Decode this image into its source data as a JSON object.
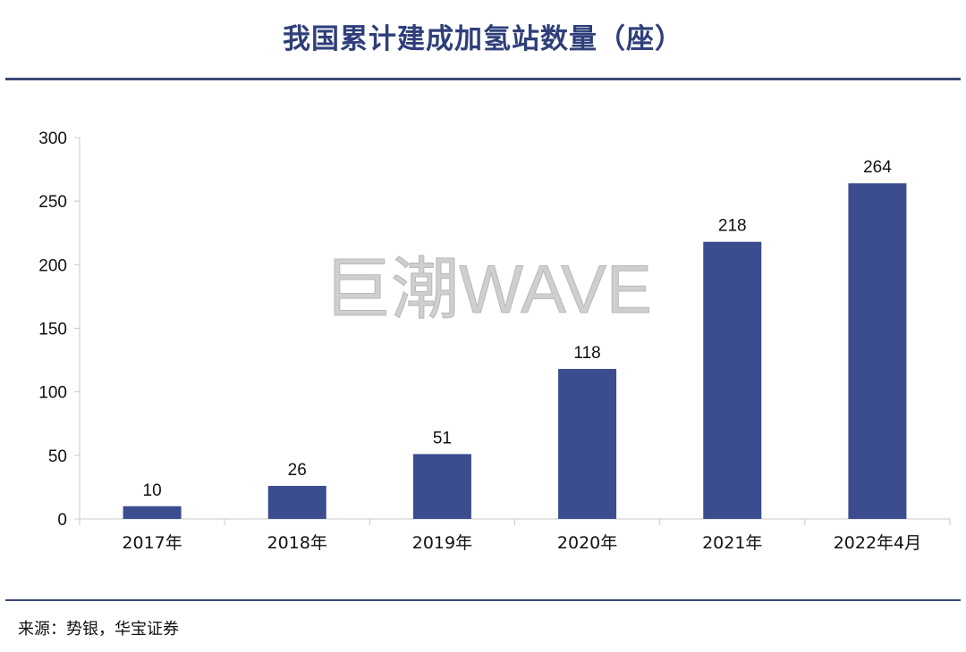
{
  "header": {
    "title": "我国累计建成加氢站数量（座）"
  },
  "watermark": {
    "text": "巨潮WAVE"
  },
  "footer": {
    "source": "来源：势银，华宝证券"
  },
  "colors": {
    "bar": "#3b4c8f",
    "title": "#2f3f7a",
    "rule": "#3c4876",
    "axis": "#c8c8c8",
    "text": "#111111",
    "watermark": "#cfcfcf"
  },
  "chart_data": {
    "type": "bar",
    "title": "我国累计建成加氢站数量（座）",
    "categories": [
      "2017年",
      "2018年",
      "2019年",
      "2020年",
      "2021年",
      "2022年4月"
    ],
    "values": [
      10,
      26,
      51,
      118,
      218,
      264
    ],
    "data_labels": [
      "10",
      "26",
      "51",
      "118",
      "218",
      "264"
    ],
    "yticks": [
      0,
      50,
      100,
      150,
      200,
      250,
      300
    ],
    "ylim": [
      0,
      300
    ],
    "xlabel": "",
    "ylabel": "",
    "grid": false,
    "legend": "none"
  }
}
